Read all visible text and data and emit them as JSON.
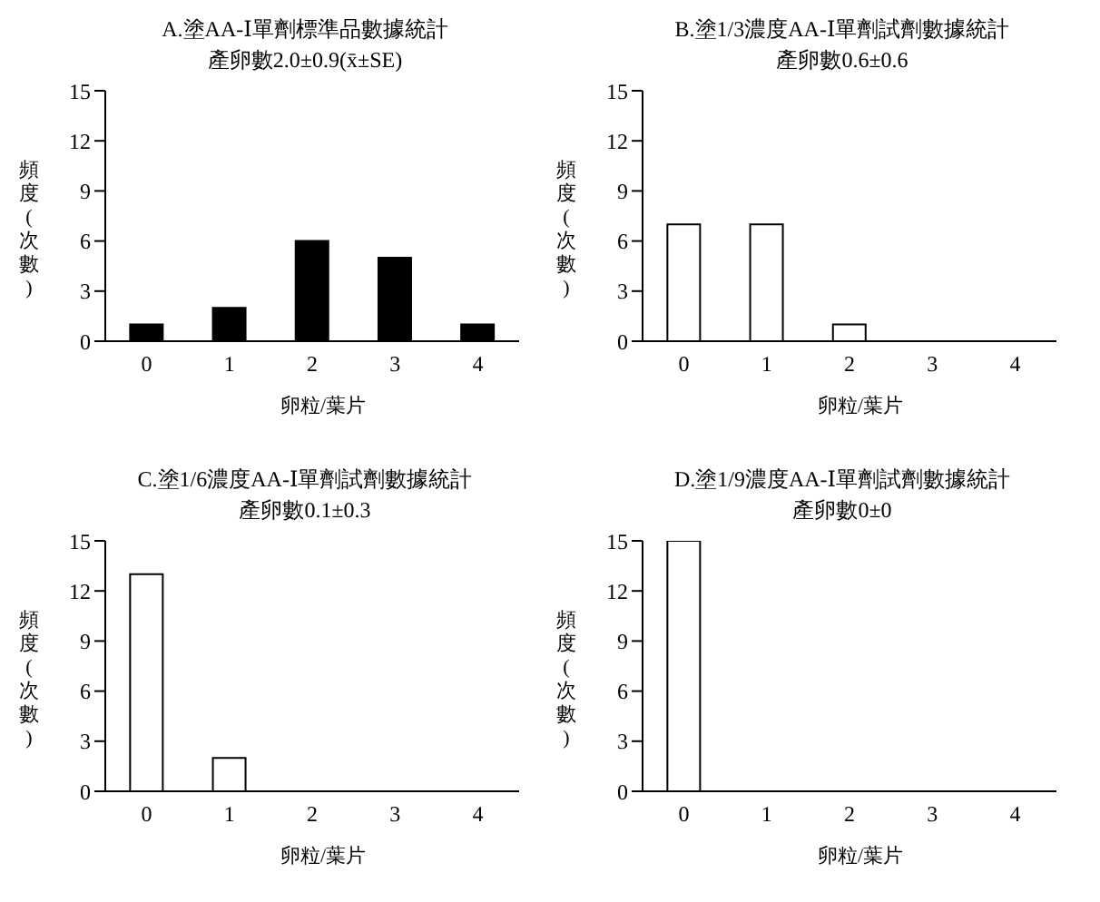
{
  "chart_data": [
    {
      "type": "bar",
      "title": "A.塗AA-Ⅰ單劑標準品數據統計",
      "subtitle": "產卵數2.0±0.9(x̄±SE)",
      "xlabel": "卵粒/葉片",
      "ylabel": "頻度(次數)",
      "categories": [
        "0",
        "1",
        "2",
        "3",
        "4"
      ],
      "values": [
        1,
        2,
        6,
        5,
        1
      ],
      "color": "#000000",
      "ylim": [
        0,
        15
      ],
      "yticks": [
        0,
        3,
        6,
        9,
        12,
        15
      ],
      "grid": false
    },
    {
      "type": "bar",
      "title": "B.塗1/3濃度AA-Ⅰ單劑試劑數據統計",
      "subtitle": "產卵數0.6±0.6",
      "xlabel": "卵粒/葉片",
      "ylabel": "頻度(次數)",
      "categories": [
        "0",
        "1",
        "2",
        "3",
        "4"
      ],
      "values": [
        7,
        7,
        1,
        0,
        0
      ],
      "color": "#ffffff",
      "ylim": [
        0,
        15
      ],
      "yticks": [
        0,
        3,
        6,
        9,
        12,
        15
      ],
      "grid": false
    },
    {
      "type": "bar",
      "title": "C.塗1/6濃度AA-Ⅰ單劑試劑數據統計",
      "subtitle": "產卵數0.1±0.3",
      "xlabel": "卵粒/葉片",
      "ylabel": "頻度(次數)",
      "categories": [
        "0",
        "1",
        "2",
        "3",
        "4"
      ],
      "values": [
        13,
        2,
        0,
        0,
        0
      ],
      "color": "#ffffff",
      "ylim": [
        0,
        15
      ],
      "yticks": [
        0,
        3,
        6,
        9,
        12,
        15
      ],
      "grid": false
    },
    {
      "type": "bar",
      "title": "D.塗1/9濃度AA-Ⅰ單劑試劑數據統計",
      "subtitle": "產卵數0±0",
      "xlabel": "卵粒/葉片",
      "ylabel": "頻度(次數)",
      "categories": [
        "0",
        "1",
        "2",
        "3",
        "4"
      ],
      "values": [
        15,
        0,
        0,
        0,
        0
      ],
      "color": "#ffffff",
      "ylim": [
        0,
        15
      ],
      "yticks": [
        0,
        3,
        6,
        9,
        12,
        15
      ],
      "grid": false
    }
  ]
}
